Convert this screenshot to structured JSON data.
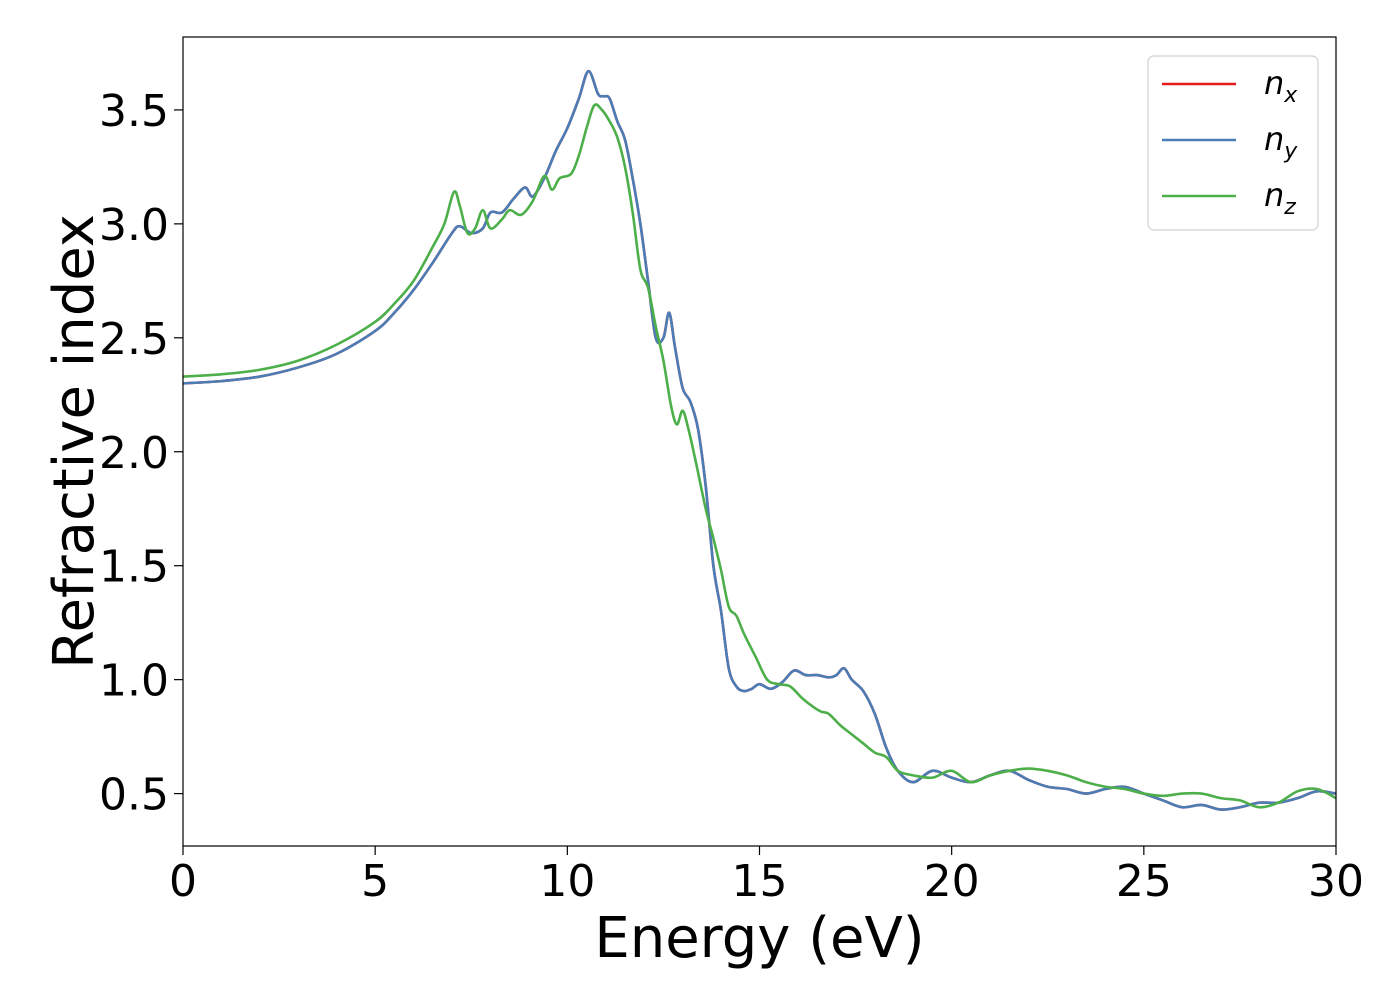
{
  "chart_data": {
    "type": "line",
    "title": "",
    "xlabel": "Energy (eV)",
    "ylabel": "Refractive index",
    "xlim": [
      0,
      30
    ],
    "ylim": [
      0.27,
      3.82
    ],
    "xticks": [
      0,
      5,
      10,
      15,
      20,
      25,
      30
    ],
    "xtick_labels": [
      "0",
      "5",
      "10",
      "15",
      "20",
      "25",
      "30"
    ],
    "yticks": [
      0.5,
      1.0,
      1.5,
      2.0,
      2.5,
      3.0,
      3.5
    ],
    "ytick_labels": [
      "0.5",
      "1.0",
      "1.5",
      "2.0",
      "2.5",
      "3.0",
      "3.5"
    ],
    "grid": false,
    "legend_position": "top-right",
    "series": [
      {
        "name": "n_x",
        "legend_base": "n",
        "legend_sub": "x",
        "color": "#e41a1c",
        "x": [
          0,
          1,
          2,
          3,
          4,
          5,
          5.5,
          6,
          6.5,
          7,
          7.2,
          7.5,
          7.8,
          8,
          8.3,
          8.6,
          8.9,
          9.1,
          9.4,
          9.7,
          10,
          10.3,
          10.55,
          10.8,
          10.95,
          11.1,
          11.3,
          11.5,
          11.7,
          11.9,
          12.1,
          12.3,
          12.5,
          12.65,
          12.8,
          13,
          13.2,
          13.4,
          13.6,
          13.8,
          14,
          14.2,
          14.4,
          14.6,
          14.8,
          15,
          15.3,
          15.6,
          15.9,
          16.2,
          16.5,
          16.8,
          17,
          17.2,
          17.4,
          17.7,
          18,
          18.3,
          18.6,
          19,
          19.5,
          20,
          20.5,
          21,
          21.5,
          22,
          22.5,
          23,
          23.5,
          24,
          24.5,
          25,
          25.5,
          26,
          26.5,
          27,
          27.5,
          28,
          28.5,
          29,
          29.5,
          30
        ],
        "y": [
          2.3,
          2.31,
          2.33,
          2.37,
          2.43,
          2.53,
          2.61,
          2.71,
          2.83,
          2.96,
          2.99,
          2.96,
          2.98,
          3.05,
          3.05,
          3.11,
          3.16,
          3.12,
          3.2,
          3.32,
          3.42,
          3.55,
          3.67,
          3.57,
          3.56,
          3.55,
          3.45,
          3.37,
          3.2,
          3.0,
          2.75,
          2.5,
          2.5,
          2.61,
          2.46,
          2.28,
          2.22,
          2.1,
          1.85,
          1.5,
          1.3,
          1.05,
          0.97,
          0.95,
          0.96,
          0.98,
          0.96,
          0.99,
          1.04,
          1.02,
          1.02,
          1.01,
          1.02,
          1.05,
          1.0,
          0.95,
          0.85,
          0.7,
          0.6,
          0.55,
          0.6,
          0.57,
          0.55,
          0.58,
          0.6,
          0.56,
          0.53,
          0.52,
          0.5,
          0.52,
          0.53,
          0.5,
          0.47,
          0.44,
          0.45,
          0.43,
          0.44,
          0.46,
          0.46,
          0.48,
          0.51,
          0.5
        ]
      },
      {
        "name": "n_y",
        "legend_base": "n",
        "legend_sub": "y",
        "color": "#4a7db5",
        "x": [
          0,
          1,
          2,
          3,
          4,
          5,
          5.5,
          6,
          6.5,
          7,
          7.2,
          7.5,
          7.8,
          8,
          8.3,
          8.6,
          8.9,
          9.1,
          9.4,
          9.7,
          10,
          10.3,
          10.55,
          10.8,
          10.95,
          11.1,
          11.3,
          11.5,
          11.7,
          11.9,
          12.1,
          12.3,
          12.5,
          12.65,
          12.8,
          13,
          13.2,
          13.4,
          13.6,
          13.8,
          14,
          14.2,
          14.4,
          14.6,
          14.8,
          15,
          15.3,
          15.6,
          15.9,
          16.2,
          16.5,
          16.8,
          17,
          17.2,
          17.4,
          17.7,
          18,
          18.3,
          18.6,
          19,
          19.5,
          20,
          20.5,
          21,
          21.5,
          22,
          22.5,
          23,
          23.5,
          24,
          24.5,
          25,
          25.5,
          26,
          26.5,
          27,
          27.5,
          28,
          28.5,
          29,
          29.5,
          30
        ],
        "y": [
          2.3,
          2.31,
          2.33,
          2.37,
          2.43,
          2.53,
          2.61,
          2.71,
          2.83,
          2.96,
          2.99,
          2.96,
          2.98,
          3.05,
          3.05,
          3.11,
          3.16,
          3.12,
          3.2,
          3.32,
          3.42,
          3.55,
          3.67,
          3.57,
          3.56,
          3.55,
          3.45,
          3.37,
          3.2,
          3.0,
          2.75,
          2.5,
          2.5,
          2.61,
          2.46,
          2.28,
          2.22,
          2.1,
          1.85,
          1.5,
          1.3,
          1.05,
          0.97,
          0.95,
          0.96,
          0.98,
          0.96,
          0.99,
          1.04,
          1.02,
          1.02,
          1.01,
          1.02,
          1.05,
          1.0,
          0.95,
          0.85,
          0.7,
          0.6,
          0.55,
          0.6,
          0.57,
          0.55,
          0.58,
          0.6,
          0.56,
          0.53,
          0.52,
          0.5,
          0.52,
          0.53,
          0.5,
          0.47,
          0.44,
          0.45,
          0.43,
          0.44,
          0.46,
          0.46,
          0.48,
          0.51,
          0.5
        ]
      },
      {
        "name": "n_z",
        "legend_base": "n",
        "legend_sub": "z",
        "color": "#4daf4a",
        "x": [
          0,
          1,
          2,
          3,
          4,
          5,
          5.5,
          6,
          6.5,
          6.8,
          7.05,
          7.2,
          7.4,
          7.6,
          7.8,
          8.0,
          8.3,
          8.5,
          8.8,
          9.1,
          9.4,
          9.6,
          9.8,
          10.1,
          10.3,
          10.5,
          10.7,
          10.9,
          11.1,
          11.3,
          11.5,
          11.7,
          11.9,
          12.1,
          12.3,
          12.5,
          12.7,
          12.85,
          13,
          13.15,
          13.35,
          13.6,
          13.8,
          14,
          14.2,
          14.4,
          14.6,
          14.9,
          15.2,
          15.5,
          15.8,
          16.1,
          16.4,
          16.6,
          16.8,
          17.1,
          17.4,
          17.7,
          18,
          18.3,
          18.6,
          19,
          19.5,
          20,
          20.5,
          21,
          21.5,
          22,
          22.5,
          23,
          23.5,
          24,
          24.5,
          25,
          25.5,
          26,
          26.5,
          27,
          27.5,
          28,
          28.5,
          29,
          29.5,
          30
        ],
        "y": [
          2.33,
          2.34,
          2.36,
          2.4,
          2.47,
          2.57,
          2.65,
          2.75,
          2.9,
          3.0,
          3.14,
          3.08,
          2.96,
          2.98,
          3.06,
          2.98,
          3.02,
          3.06,
          3.04,
          3.1,
          3.21,
          3.15,
          3.2,
          3.22,
          3.3,
          3.42,
          3.52,
          3.5,
          3.45,
          3.38,
          3.25,
          3.05,
          2.8,
          2.72,
          2.55,
          2.4,
          2.2,
          2.12,
          2.18,
          2.1,
          1.95,
          1.75,
          1.62,
          1.48,
          1.32,
          1.28,
          1.2,
          1.1,
          1.0,
          0.98,
          0.97,
          0.92,
          0.88,
          0.86,
          0.85,
          0.8,
          0.76,
          0.72,
          0.68,
          0.66,
          0.6,
          0.58,
          0.57,
          0.6,
          0.55,
          0.58,
          0.6,
          0.61,
          0.6,
          0.58,
          0.55,
          0.53,
          0.52,
          0.5,
          0.49,
          0.5,
          0.5,
          0.48,
          0.47,
          0.44,
          0.46,
          0.51,
          0.52,
          0.48
        ]
      }
    ]
  }
}
